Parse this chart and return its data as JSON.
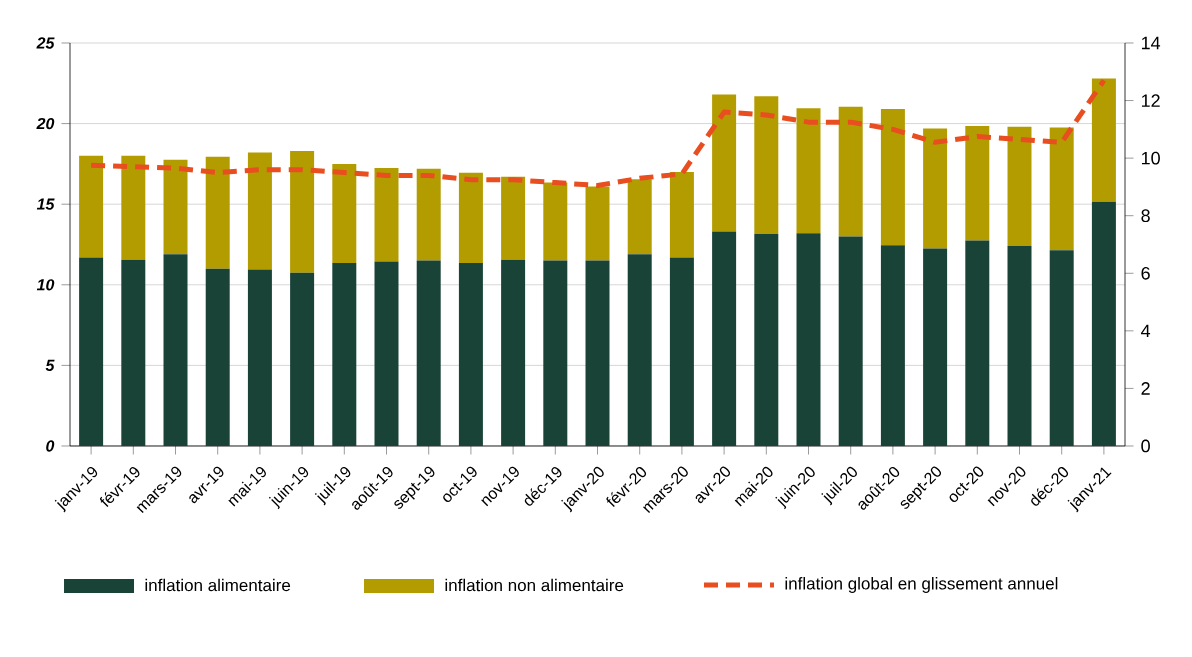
{
  "chart_data": {
    "type": "bar",
    "stacked": true,
    "categories": [
      "janv-19",
      "févr-19",
      "mars-19",
      "avr-19",
      "mai-19",
      "juin-19",
      "juil-19",
      "août-19",
      "sept-19",
      "oct-19",
      "nov-19",
      "déc-19",
      "janv-20",
      "févr-20",
      "mars-20",
      "avr-20",
      "mai-20",
      "juin-20",
      "juil-20",
      "août-20",
      "sept-20",
      "oct-20",
      "nov-20",
      "déc-20",
      "janv-21"
    ],
    "series": [
      {
        "name": "inflation alimentaire",
        "color": "#1a4338",
        "values": [
          11.7,
          11.55,
          11.9,
          11.0,
          10.95,
          10.75,
          11.35,
          11.45,
          11.5,
          11.35,
          11.55,
          11.5,
          11.5,
          11.9,
          11.7,
          13.3,
          13.15,
          13.2,
          13.0,
          12.45,
          12.25,
          12.75,
          12.4,
          12.15,
          15.15
        ]
      },
      {
        "name": "inflation non alimentaire",
        "color": "#b39c00",
        "values": [
          6.3,
          6.45,
          5.85,
          6.95,
          7.25,
          7.55,
          6.15,
          5.8,
          5.7,
          5.6,
          5.15,
          4.85,
          4.6,
          4.65,
          5.3,
          8.5,
          8.55,
          7.75,
          8.05,
          8.45,
          7.45,
          7.1,
          7.4,
          7.6,
          7.65
        ]
      },
      {
        "name": "inflation global en glissement annuel",
        "type": "line",
        "axis": "y2",
        "line_style": "dashed",
        "color": "#e84e1f",
        "values": [
          9.75,
          9.7,
          9.65,
          9.5,
          9.6,
          9.6,
          9.5,
          9.4,
          9.4,
          9.25,
          9.25,
          9.15,
          9.05,
          9.3,
          9.45,
          11.6,
          11.5,
          11.25,
          11.25,
          11.0,
          10.55,
          10.75,
          10.65,
          10.55,
          12.7
        ]
      }
    ],
    "ylim": [
      0,
      25
    ],
    "yticks": [
      0,
      5,
      10,
      15,
      20,
      25
    ],
    "y2lim": [
      0,
      14
    ],
    "y2ticks": [
      0,
      2,
      4,
      6,
      8,
      10,
      12,
      14
    ],
    "grid": "y",
    "legend": "bottom"
  }
}
